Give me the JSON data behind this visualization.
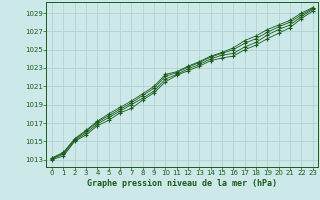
{
  "background_color": "#cce8e8",
  "grid_color": "#b0cece",
  "line_color": "#1a5c1a",
  "title": "Graphe pression niveau de la mer (hPa)",
  "yticks": [
    1013,
    1015,
    1017,
    1019,
    1021,
    1023,
    1025,
    1027,
    1029
  ],
  "ylim": [
    1012.2,
    1030.2
  ],
  "xlim": [
    -0.5,
    23.5
  ],
  "series": [
    [
      1013.0,
      1013.4,
      1015.0,
      1015.7,
      1016.7,
      1017.3,
      1018.1,
      1018.6,
      1019.5,
      1020.3,
      1021.5,
      1022.2,
      1022.7,
      1023.2,
      1023.8,
      1024.1,
      1024.3,
      1025.0,
      1025.5,
      1026.2,
      1026.8,
      1027.4,
      1028.4,
      1029.2
    ],
    [
      1013.1,
      1013.6,
      1015.1,
      1015.9,
      1016.9,
      1017.6,
      1018.3,
      1019.0,
      1019.7,
      1020.5,
      1021.8,
      1022.3,
      1022.9,
      1023.4,
      1024.0,
      1024.4,
      1024.6,
      1025.3,
      1025.8,
      1026.6,
      1027.2,
      1027.7,
      1028.6,
      1029.4
    ],
    [
      1013.15,
      1013.7,
      1015.2,
      1016.1,
      1017.1,
      1017.8,
      1018.5,
      1019.2,
      1020.0,
      1020.8,
      1022.1,
      1022.5,
      1023.1,
      1023.6,
      1024.2,
      1024.6,
      1025.0,
      1025.7,
      1026.2,
      1026.9,
      1027.5,
      1028.0,
      1028.8,
      1029.5
    ],
    [
      1013.2,
      1013.8,
      1015.3,
      1016.2,
      1017.2,
      1018.0,
      1018.7,
      1019.4,
      1020.2,
      1021.0,
      1022.3,
      1022.6,
      1023.2,
      1023.7,
      1024.3,
      1024.7,
      1025.2,
      1026.0,
      1026.5,
      1027.2,
      1027.7,
      1028.2,
      1029.0,
      1029.6
    ]
  ],
  "marker_x": [
    0,
    1,
    2,
    3,
    4,
    5,
    6,
    7,
    8,
    9,
    10,
    11,
    12,
    13,
    14,
    15,
    16,
    17,
    18,
    19,
    20,
    21,
    22,
    23
  ]
}
